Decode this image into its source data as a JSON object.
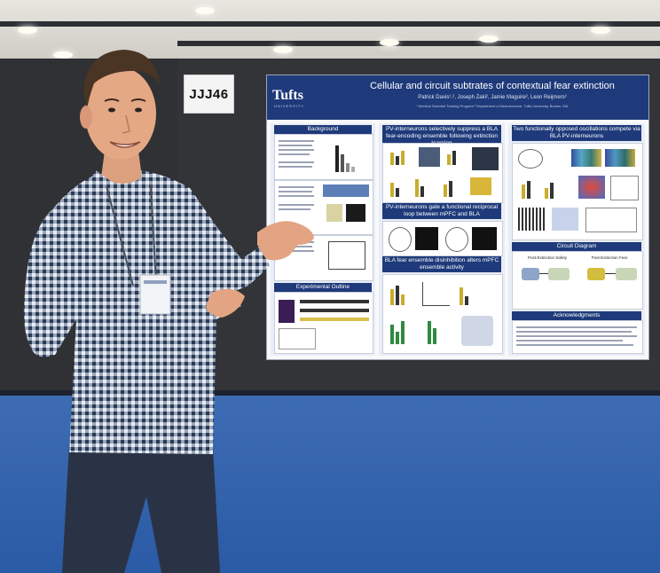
{
  "booth_sign": "JJJ46",
  "poster": {
    "logo": "Tufts",
    "logo_sub": "UNIVERSITY",
    "title": "Cellular and circuit subtrates of contextual fear extinction",
    "authors": "Patrick Davis¹˒², Joseph Zaki², Jamie Maguire², Leon Reijmers²",
    "affiliation": "¹ Medical Scientist Training Program  ² Department of Neuroscience, Tufts University, Boston, MA",
    "sections": {
      "background": "Background",
      "experimental_outline": "Experimental Outline",
      "pv_suppress": "PV-interneurons selectively suppress a BLA fear-encoding ensemble following extinction learning",
      "pv_loop": "PV-interneurons gate a functional reciprocal loop between mPFC and BLA",
      "bla_disinhibition": "BLA fear ensemble disinhibition alters mPFC ensemble activity",
      "oscillations": "Two functionally opposed oscillations compete via BLA PV-interneurons",
      "circuit_diagram": "Circuit Diagram",
      "acknowledgments": "Acknowledgments"
    },
    "circuit_labels": {
      "safety": "Post-Extinction Safety",
      "fear": "Post-Extinction Fear"
    }
  },
  "colors": {
    "poster_blue": "#1e3a7a",
    "floor_blue": "#2f5ea8",
    "shirt_check": "#2a3a55",
    "jeans": "#2a3346"
  }
}
